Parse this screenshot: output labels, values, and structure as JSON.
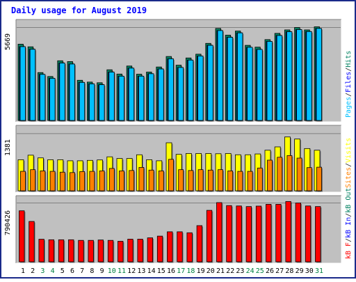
{
  "chart_data": [
    {
      "type": "bar",
      "title": "Daily usage for August 2019",
      "max_label": "5669",
      "ylim": [
        0,
        5900
      ],
      "legend": [
        "Pages",
        "Files",
        "Hits"
      ],
      "categories": [
        "1",
        "2",
        "3",
        "4",
        "5",
        "6",
        "7",
        "8",
        "9",
        "10",
        "11",
        "12",
        "13",
        "14",
        "15",
        "16",
        "17",
        "18",
        "19",
        "20",
        "21",
        "22",
        "23",
        "24",
        "25",
        "26",
        "27",
        "28",
        "29",
        "30",
        "31"
      ],
      "weekend_days": [
        "3",
        "4",
        "10",
        "11",
        "17",
        "18",
        "24",
        "25",
        "31"
      ],
      "series": [
        {
          "name": "Hits",
          "values": [
            4650,
            4490,
            2920,
            2680,
            3640,
            3590,
            2450,
            2340,
            2300,
            3090,
            2830,
            3320,
            2820,
            2950,
            3260,
            3900,
            3370,
            3810,
            4040,
            4700,
            5610,
            5200,
            5450,
            4580,
            4470,
            4930,
            5310,
            5520,
            5670,
            5520,
            5710
          ]
        },
        {
          "name": "Files",
          "values": [
            4500,
            4340,
            2810,
            2570,
            3500,
            3440,
            2320,
            2230,
            2180,
            2950,
            2700,
            3190,
            2700,
            2850,
            3140,
            3760,
            3230,
            3680,
            3930,
            4580,
            5480,
            5070,
            5340,
            4460,
            4330,
            4820,
            5180,
            5410,
            5540,
            5420,
            5610
          ]
        },
        {
          "name": "Pages",
          "values": [
            4500,
            4340,
            2810,
            2570,
            3500,
            3440,
            2320,
            2230,
            2180,
            2950,
            2700,
            3190,
            2700,
            2850,
            3140,
            3760,
            3230,
            3680,
            3930,
            4580,
            5480,
            5070,
            5340,
            4460,
            4330,
            4820,
            5180,
            5410,
            5540,
            5420,
            5610
          ]
        }
      ]
    },
    {
      "type": "bar",
      "max_label": "1381",
      "ylim": [
        0,
        1480
      ],
      "legend": [
        "Visits",
        "Sites"
      ],
      "series": [
        {
          "name": "Visits",
          "values": [
            750,
            860,
            795,
            750,
            750,
            725,
            725,
            735,
            745,
            820,
            780,
            780,
            870,
            750,
            725,
            1160,
            880,
            900,
            900,
            900,
            895,
            900,
            870,
            870,
            890,
            980,
            1060,
            1300,
            1250,
            1020,
            980
          ]
        },
        {
          "name": "Sites",
          "values": [
            470,
            510,
            480,
            470,
            450,
            440,
            465,
            470,
            480,
            540,
            480,
            490,
            565,
            500,
            480,
            760,
            510,
            490,
            510,
            500,
            510,
            480,
            470,
            470,
            550,
            740,
            810,
            850,
            790,
            560,
            570
          ]
        }
      ]
    },
    {
      "type": "bar",
      "max_label": "790426",
      "ylim": [
        0,
        832000
      ],
      "legend": [
        "kB F",
        "kB In",
        "kB Out"
      ],
      "series": [
        {
          "name": "kB F",
          "values": [
            685000,
            542000,
            303000,
            296000,
            296000,
            296000,
            288000,
            288000,
            293000,
            288000,
            276000,
            304000,
            304000,
            322000,
            345000,
            403000,
            403000,
            390000,
            486000,
            691000,
            795000,
            755000,
            750000,
            742000,
            748000,
            772000,
            772000,
            810000,
            790000,
            750000,
            742000
          ]
        }
      ]
    }
  ],
  "colors": {
    "background": "#ffffff",
    "border": "#1a2a8a",
    "panel": "#c0c0c0",
    "title": "#0000ff",
    "hits": "#008060",
    "files": "#0000ff",
    "pages": "#00c0ff",
    "visits": "#ffff00",
    "sites": "#ff8000",
    "kbytes": "#ff0000",
    "sep": "#202020",
    "day_weekday": "#000000",
    "day_weekend": "#008040",
    "max_label": "#000000"
  }
}
